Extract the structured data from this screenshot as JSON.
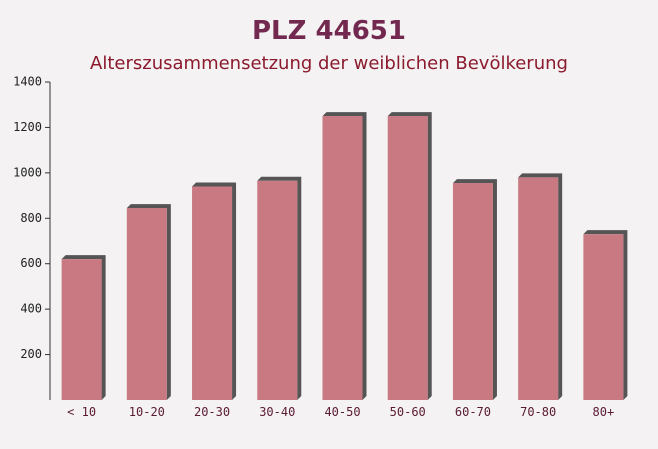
{
  "chart_data": {
    "type": "bar",
    "title": "PLZ 44651",
    "subtitle": "Alterszusammensetzung der weiblichen Bevölkerung",
    "categories": [
      "< 10",
      "10-20",
      "20-30",
      "30-40",
      "40-50",
      "50-60",
      "60-70",
      "70-80",
      "80+"
    ],
    "values": [
      620,
      845,
      940,
      965,
      1250,
      1250,
      955,
      980,
      730
    ],
    "color": "#c0646e",
    "ylim": [
      0,
      1400
    ],
    "yticks": [
      200,
      400,
      600,
      800,
      1000,
      1200,
      1400
    ]
  }
}
